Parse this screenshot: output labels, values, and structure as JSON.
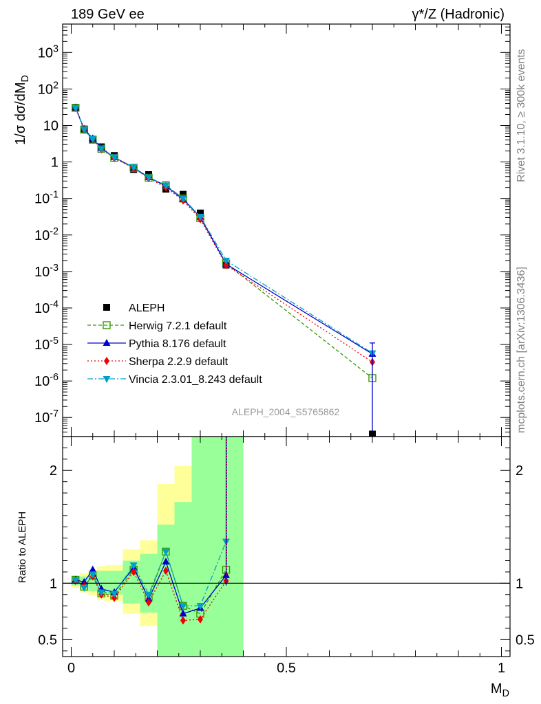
{
  "header": {
    "left_title": "189 GeV ee",
    "right_title": "γ*/Z (Hadronic)"
  },
  "side_labels": {
    "rivet": "Rivet 3.1.10, ≥ 300k events",
    "mcplots": "mcplots.cern.ch [arXiv:1306.3436]"
  },
  "analysis_id": "ALEPH_2004_S5765862",
  "chart_data": [
    {
      "type": "scatter",
      "panel": "main",
      "ylabel": "1/σ  dσ/dM_D",
      "yscale": "log",
      "ylim": [
        3e-08,
        6000
      ],
      "xlim": [
        -0.02,
        1.02
      ],
      "ytick_labels": [
        "10^-7",
        "10^-6",
        "10^-5",
        "10^-4",
        "10^-3",
        "10^-2",
        "10^-1",
        "1",
        "10",
        "10^2",
        "10^3"
      ],
      "x": [
        0.01,
        0.03,
        0.05,
        0.07,
        0.1,
        0.145,
        0.18,
        0.22,
        0.26,
        0.3,
        0.36,
        0.7
      ],
      "series": [
        {
          "name": "ALEPH",
          "color": "#000000",
          "values": [
            30,
            8,
            4,
            2.6,
            1.5,
            0.62,
            0.45,
            0.18,
            0.13,
            0.04,
            0.0015,
            3.5e-08
          ]
        },
        {
          "name": "Herwig 7.2.1 default",
          "color": "#339900",
          "values": [
            30.5,
            7.7,
            4.1,
            2.3,
            1.3,
            0.69,
            0.37,
            0.23,
            0.1,
            0.029,
            0.00165,
            1.2e-06
          ]
        },
        {
          "name": "Pythia 8.176 default",
          "color": "#0000cc",
          "values": [
            31,
            8,
            4.4,
            2.4,
            1.35,
            0.7,
            0.38,
            0.22,
            0.095,
            0.031,
            0.0016,
            5.5e-06
          ]
        },
        {
          "name": "Sherpa 2.2.9 default",
          "color": "#ee0000",
          "values": [
            30,
            7.6,
            4.2,
            2.2,
            1.28,
            0.68,
            0.36,
            0.2,
            0.088,
            0.027,
            0.0015,
            3.3e-06
          ]
        },
        {
          "name": "Vincia 2.3.01_8.243 default",
          "color": "#00a0c8",
          "values": [
            30.5,
            7.8,
            4.3,
            2.3,
            1.35,
            0.72,
            0.38,
            0.23,
            0.1,
            0.032,
            0.002,
            5.8e-06
          ]
        }
      ]
    },
    {
      "type": "scatter",
      "panel": "ratio",
      "ylabel": "Ratio to ALEPH",
      "xlabel": "M_D",
      "ylim": [
        0.35,
        2.3
      ],
      "xlim": [
        -0.02,
        1.02
      ],
      "xtick_labels": [
        "0",
        "0.5",
        "1"
      ],
      "ytick_labels": [
        "0.5",
        "1",
        "2"
      ],
      "x": [
        0.01,
        0.03,
        0.05,
        0.07,
        0.1,
        0.145,
        0.18,
        0.22,
        0.26,
        0.3,
        0.36
      ],
      "bands": [
        {
          "x0": 0.0,
          "x1": 0.02,
          "g": [
            0.98,
            1.04
          ],
          "y": [
            0.96,
            1.06
          ]
        },
        {
          "x0": 0.02,
          "x1": 0.04,
          "g": [
            0.95,
            1.06
          ],
          "y": [
            0.92,
            1.09
          ]
        },
        {
          "x0": 0.04,
          "x1": 0.06,
          "g": [
            0.93,
            1.08
          ],
          "y": [
            0.89,
            1.12
          ]
        },
        {
          "x0": 0.06,
          "x1": 0.08,
          "g": [
            0.91,
            1.11
          ],
          "y": [
            0.85,
            1.15
          ]
        },
        {
          "x0": 0.08,
          "x1": 0.12,
          "g": [
            0.9,
            1.11
          ],
          "y": [
            0.84,
            1.16
          ]
        },
        {
          "x0": 0.12,
          "x1": 0.16,
          "g": [
            0.82,
            1.2
          ],
          "y": [
            0.73,
            1.3
          ]
        },
        {
          "x0": 0.16,
          "x1": 0.2,
          "g": [
            0.74,
            1.26
          ],
          "y": [
            0.62,
            1.38
          ]
        },
        {
          "x0": 0.2,
          "x1": 0.24,
          "g": [
            0.22,
            1.52
          ],
          "y": [
            0.0,
            1.88
          ]
        },
        {
          "x0": 0.24,
          "x1": 0.28,
          "g": [
            0.0,
            1.72
          ],
          "y": [
            0.0,
            2.04
          ]
        },
        {
          "x0": 0.28,
          "x1": 0.32,
          "g": [
            0.0,
            2.3
          ],
          "y": [
            0.0,
            2.3
          ]
        },
        {
          "x0": 0.32,
          "x1": 0.4,
          "g": [
            0.0,
            2.3
          ],
          "y": [
            0.0,
            2.3
          ]
        }
      ],
      "series": [
        {
          "name": "Herwig 7.2.1 default",
          "values": [
            1.03,
            0.97,
            1.07,
            0.91,
            0.89,
            1.12,
            0.88,
            1.28,
            0.8,
            0.73,
            1.12
          ]
        },
        {
          "name": "Pythia 8.176 default",
          "values": [
            1.03,
            1.01,
            1.12,
            0.95,
            0.92,
            1.14,
            0.86,
            1.19,
            0.73,
            0.78,
            1.07
          ]
        },
        {
          "name": "Sherpa 2.2.9 default",
          "values": [
            1.02,
            0.98,
            1.06,
            0.9,
            0.87,
            1.1,
            0.83,
            1.11,
            0.67,
            0.68,
            1.02
          ]
        },
        {
          "name": "Vincia 2.3.01_8.243 default",
          "values": [
            1.03,
            0.96,
            1.08,
            0.92,
            0.91,
            1.16,
            0.9,
            1.28,
            0.8,
            0.8,
            1.37
          ]
        }
      ]
    }
  ]
}
